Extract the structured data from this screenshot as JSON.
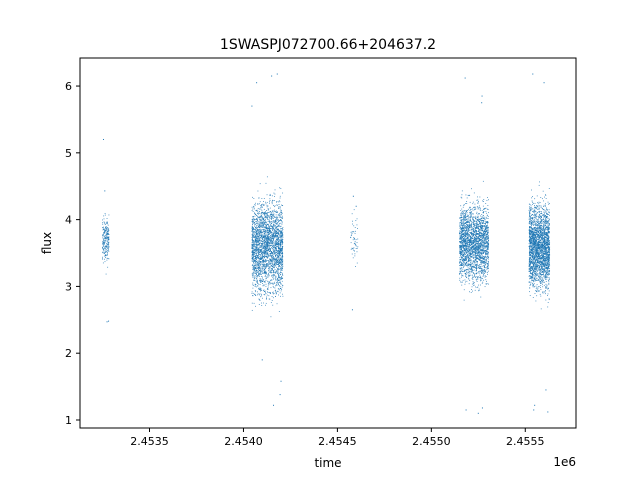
{
  "chart_data": {
    "type": "scatter",
    "title": "1SWASPJ072700.66+204637.2",
    "xlabel": "time",
    "ylabel": "flux",
    "x_offset_label": "1e6",
    "xlim": [
      2453130,
      2455770
    ],
    "ylim": [
      0.88,
      6.42
    ],
    "x_ticks": [
      2453500,
      2454000,
      2454500,
      2455000,
      2455500
    ],
    "x_tick_labels": [
      "2.4535",
      "2.4540",
      "2.4545",
      "2.4550",
      "2.4555"
    ],
    "y_ticks": [
      1,
      2,
      3,
      4,
      5,
      6
    ],
    "y_tick_labels": [
      "1",
      "2",
      "3",
      "4",
      "5",
      "6"
    ],
    "grid": false,
    "marker_color": "#1f77b4",
    "series": [
      {
        "clusters": [
          {
            "x_range": [
              2453250,
              2453285
            ],
            "count": 220,
            "mean": 3.7,
            "spread": 0.28,
            "x": [
              2453262,
              2453282,
              2453255,
              2453274
            ],
            "y": [
              4.43,
              2.48,
              5.2,
              2.47
            ]
          },
          {
            "x_range": [
              2454045,
              2454210
            ],
            "count": 2600,
            "mean": 3.6,
            "spread": 0.55,
            "x": [
              2454070,
              2454150,
              2454180,
              2454160,
              2454195,
              2454100,
              2454200,
              2454045
            ],
            "y": [
              6.05,
              6.15,
              6.18,
              1.22,
              1.38,
              1.9,
              1.58,
              5.7
            ]
          },
          {
            "x_range": [
              2454570,
              2454610
            ],
            "count": 55,
            "mean": 3.7,
            "spread": 0.32,
            "x": [
              2454585,
              2454580,
              2454600
            ],
            "y": [
              4.35,
              2.65,
              4.2
            ]
          },
          {
            "x_range": [
              2455150,
              2455305
            ],
            "count": 2300,
            "mean": 3.65,
            "spread": 0.45,
            "x": [
              2455180,
              2455185,
              2455270,
              2455272,
              2455250,
              2455268
            ],
            "y": [
              6.12,
              1.15,
              5.85,
              1.18,
              1.1,
              5.75
            ]
          },
          {
            "x_range": [
              2455520,
              2455630
            ],
            "count": 2400,
            "mean": 3.6,
            "spread": 0.5,
            "x": [
              2455540,
              2455600,
              2455545,
              2455550,
              2455610,
              2455620
            ],
            "y": [
              6.18,
              6.05,
              1.15,
              1.22,
              1.45,
              1.12
            ]
          }
        ]
      }
    ]
  }
}
